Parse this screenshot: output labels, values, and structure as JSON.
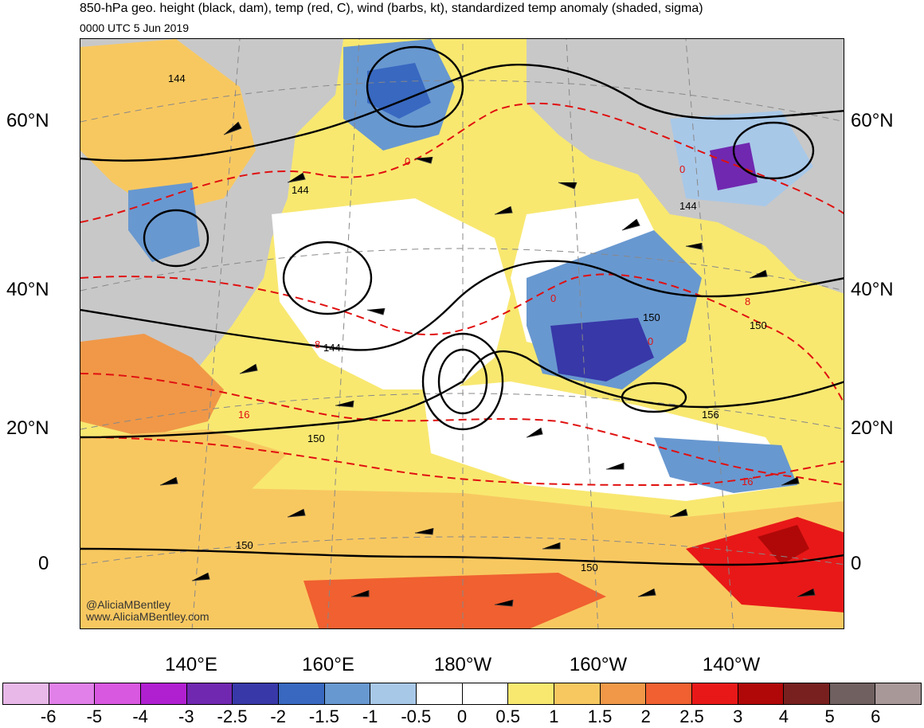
{
  "header": {
    "title": "850-hPa geo. height (black, dam), temp (red, C), wind (barbs, kt), standardized temp anomaly (shaded, sigma)",
    "valid_time": "0000 UTC 5 Jun 2019"
  },
  "map": {
    "lat_labels_left": [
      "60°N",
      "40°N",
      "20°N",
      "0"
    ],
    "lat_labels_right": [
      "60°N",
      "40°N",
      "20°N",
      "0"
    ],
    "lon_labels": [
      "140°E",
      "160°E",
      "180°W",
      "160°W",
      "140°W"
    ],
    "height_contour_labels": [
      "144",
      "144",
      "144",
      "144",
      "150",
      "150",
      "150",
      "156",
      "150",
      "150"
    ],
    "temp_contour_labels": [
      "0",
      "0",
      "0",
      "8",
      "16",
      "16",
      "8",
      "0"
    ],
    "credit_lines": [
      "@AliciaMBentley",
      "www.AliciaMBentley.com"
    ],
    "colors": {
      "land": "#c8c8c8",
      "height_contour": "#000000",
      "temp_contour": "#e01010"
    }
  },
  "colorbar": {
    "colors": [
      "#e8b8e8",
      "#e080e8",
      "#d858e0",
      "#b020d0",
      "#7028b0",
      "#3838a8",
      "#3868c0",
      "#6898d0",
      "#a8c8e8",
      "#ffffff",
      "#ffffff",
      "#f8e870",
      "#f8c860",
      "#f09848",
      "#f06030",
      "#e81818",
      "#b00808",
      "#782020",
      "#706060",
      "#a89898"
    ],
    "labels": [
      "-6",
      "-5",
      "-4",
      "-3",
      "-2.5",
      "-2",
      "-1.5",
      "-1",
      "-0.5",
      "0",
      "0.5",
      "1",
      "1.5",
      "2",
      "2.5",
      "3",
      "4",
      "5",
      "6"
    ]
  }
}
